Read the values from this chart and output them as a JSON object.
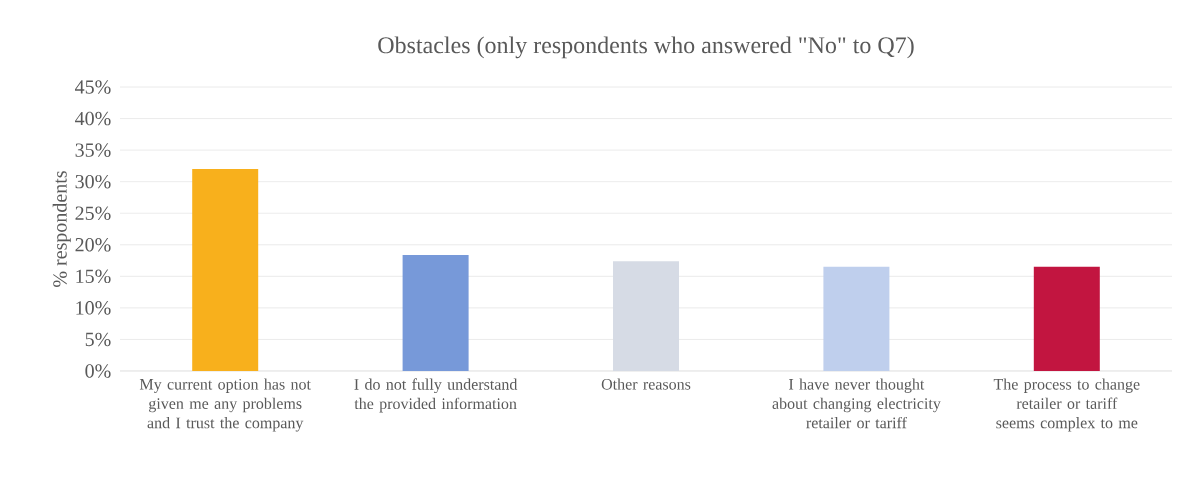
{
  "chart_data": {
    "type": "bar",
    "title": "Obstacles (only respondents who answered \"No\" to Q7)",
    "ylabel": "% respondents",
    "categories": [
      "My current option has not given me any problems and I trust the company",
      "I do not fully understand the provided information",
      "Other reasons",
      "I have never thought about changing electricity retailer or tariff",
      "The process to change retailer or tariff seems complex to me"
    ],
    "values": [
      32.0,
      18.4,
      17.4,
      16.5,
      16.5
    ],
    "colors": [
      "#f8b01c",
      "#7799d9",
      "#d6dbe5",
      "#bfcfed",
      "#c21540"
    ],
    "ylim": [
      0,
      45
    ],
    "yticks": [
      {
        "value": 0,
        "label": "0%"
      },
      {
        "value": 5,
        "label": "5%"
      },
      {
        "value": 10,
        "label": "10%"
      },
      {
        "value": 15,
        "label": "15%"
      },
      {
        "value": 20,
        "label": "20%"
      },
      {
        "value": 25,
        "label": "25%"
      },
      {
        "value": 30,
        "label": "30%"
      },
      {
        "value": 35,
        "label": "35%"
      },
      {
        "value": 40,
        "label": "40%"
      },
      {
        "value": 45,
        "label": "45%"
      }
    ],
    "grid": "y"
  }
}
